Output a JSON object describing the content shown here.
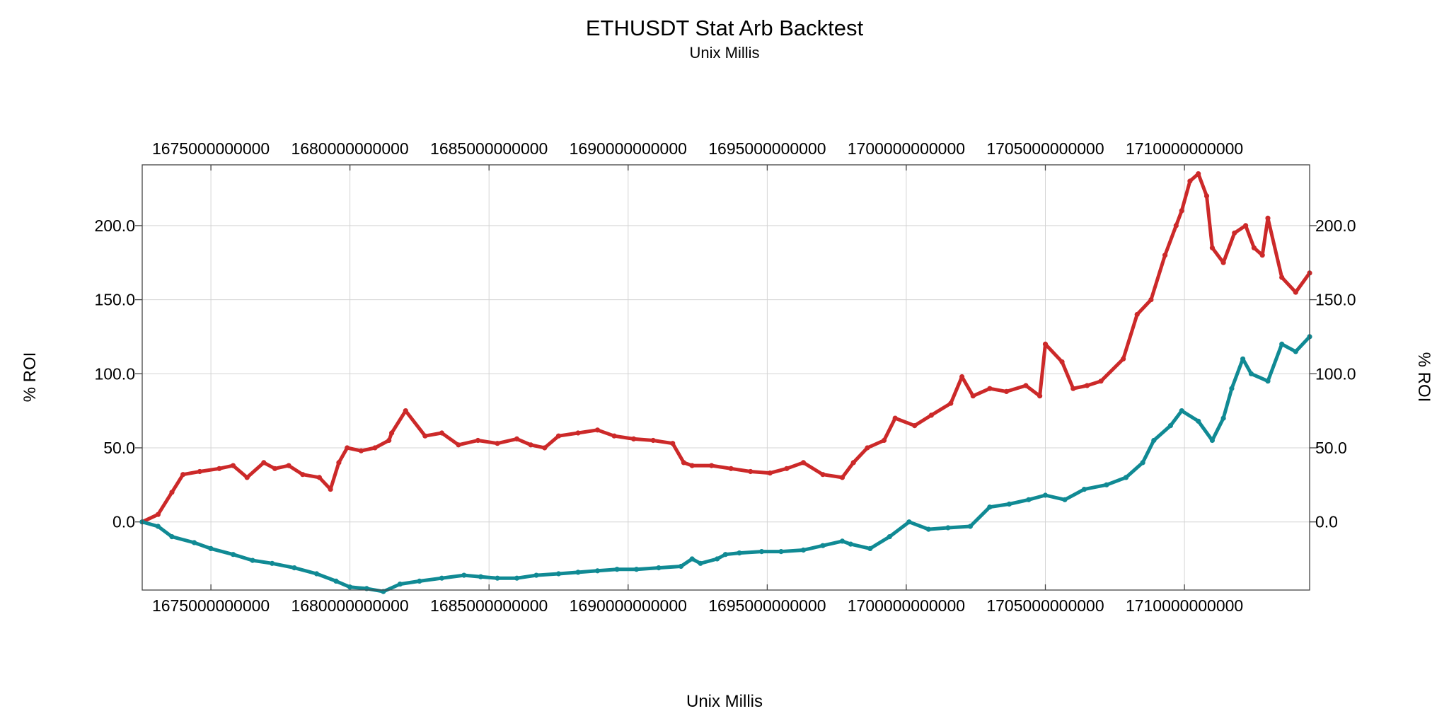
{
  "chart_data": {
    "type": "scatter",
    "title": "ETHUSDT Stat Arb Backtest",
    "subtitle": "Unix Millis",
    "xlabel": "Unix Millis",
    "ylabel_left": "% ROI",
    "ylabel_right": "% ROI",
    "xlim": [
      1672531200000,
      1714500000000
    ],
    "ylim": [
      -46,
      241
    ],
    "x_ticks": [
      1675000000000,
      1680000000000,
      1685000000000,
      1690000000000,
      1695000000000,
      1700000000000,
      1705000000000,
      1710000000000
    ],
    "x_tick_labels": [
      "1675000000000",
      "1680000000000",
      "1685000000000",
      "1690000000000",
      "1695000000000",
      "1700000000000",
      "1705000000000",
      "1710000000000"
    ],
    "y_ticks": [
      0,
      50,
      100,
      150,
      200
    ],
    "y_tick_labels": [
      "0.0",
      "50.0",
      "100.0",
      "150.0",
      "200.0"
    ],
    "grid": true,
    "series": [
      {
        "color": "#cc2929",
        "x": [
          1672531200000,
          1673100000000,
          1673600000000,
          1674000000000,
          1674600000000,
          1675300000000,
          1675800000000,
          1676300000000,
          1676900000000,
          1677300000000,
          1677800000000,
          1678300000000,
          1678900000000,
          1679300000000,
          1679600000000,
          1679900000000,
          1680400000000,
          1680900000000,
          1681400000000,
          1681500000000,
          1682000000000,
          1682700000000,
          1683300000000,
          1683900000000,
          1684600000000,
          1685300000000,
          1686000000000,
          1686500000000,
          1687000000000,
          1687500000000,
          1688200000000,
          1688900000000,
          1689500000000,
          1690200000000,
          1690900000000,
          1691600000000,
          1692000000000,
          1692300000000,
          1693000000000,
          1693700000000,
          1694400000000,
          1695100000000,
          1695700000000,
          1696300000000,
          1697000000000,
          1697700000000,
          1698100000000,
          1698600000000,
          1699200000000,
          1699600000000,
          1700300000000,
          1700900000000,
          1701600000000,
          1702000000000,
          1702400000000,
          1703000000000,
          1703600000000,
          1704300000000,
          1704800000000,
          1705000000000,
          1705600000000,
          1706000000000,
          1706500000000,
          1707000000000,
          1707800000000,
          1708300000000,
          1708800000000,
          1709300000000,
          1709700000000,
          1709900000000,
          1710200000000,
          1710500000000,
          1710800000000,
          1711000000000,
          1711400000000,
          1711800000000,
          1712200000000,
          1712500000000,
          1712800000000,
          1713000000000,
          1713500000000,
          1714000000000,
          1714500000000
        ],
        "y": [
          0,
          5,
          20,
          32,
          34,
          36,
          38,
          30,
          40,
          36,
          38,
          32,
          30,
          22,
          40,
          50,
          48,
          50,
          55,
          60,
          75,
          58,
          60,
          52,
          55,
          53,
          56,
          52,
          50,
          58,
          60,
          62,
          58,
          56,
          55,
          53,
          40,
          38,
          38,
          36,
          34,
          33,
          36,
          40,
          32,
          30,
          40,
          50,
          55,
          70,
          65,
          72,
          80,
          98,
          85,
          90,
          88,
          92,
          85,
          120,
          108,
          90,
          92,
          95,
          110,
          140,
          150,
          180,
          200,
          210,
          230,
          235,
          220,
          185,
          175,
          195,
          200,
          185,
          180,
          205,
          165,
          155,
          168
        ]
      },
      {
        "color": "#108a94",
        "x": [
          1672531200000,
          1673100000000,
          1673600000000,
          1674400000000,
          1675000000000,
          1675800000000,
          1676500000000,
          1677200000000,
          1678000000000,
          1678800000000,
          1679500000000,
          1680000000000,
          1680600000000,
          1681200000000,
          1681800000000,
          1682500000000,
          1683300000000,
          1684100000000,
          1684700000000,
          1685300000000,
          1686000000000,
          1686700000000,
          1687500000000,
          1688200000000,
          1688900000000,
          1689600000000,
          1690300000000,
          1691100000000,
          1691900000000,
          1692300000000,
          1692600000000,
          1693200000000,
          1693500000000,
          1694000000000,
          1694800000000,
          1695500000000,
          1696300000000,
          1697000000000,
          1697700000000,
          1698000000000,
          1698700000000,
          1699400000000,
          1700100000000,
          1700800000000,
          1701500000000,
          1702300000000,
          1703000000000,
          1703700000000,
          1704400000000,
          1705000000000,
          1705700000000,
          1706400000000,
          1707200000000,
          1707900000000,
          1708500000000,
          1708900000000,
          1709500000000,
          1709900000000,
          1710500000000,
          1711000000000,
          1711400000000,
          1711700000000,
          1712100000000,
          1712400000000,
          1713000000000,
          1713500000000,
          1714000000000,
          1714500000000
        ],
        "y": [
          0,
          -3,
          -10,
          -14,
          -18,
          -22,
          -26,
          -28,
          -31,
          -35,
          -40,
          -44,
          -45,
          -47,
          -42,
          -40,
          -38,
          -36,
          -37,
          -38,
          -38,
          -36,
          -35,
          -34,
          -33,
          -32,
          -32,
          -31,
          -30,
          -25,
          -28,
          -25,
          -22,
          -21,
          -20,
          -20,
          -19,
          -16,
          -13,
          -15,
          -18,
          -10,
          0,
          -5,
          -4,
          -3,
          10,
          12,
          15,
          18,
          15,
          22,
          25,
          30,
          40,
          55,
          65,
          75,
          68,
          55,
          70,
          90,
          110,
          100,
          95,
          120,
          115,
          125
        ]
      }
    ]
  }
}
